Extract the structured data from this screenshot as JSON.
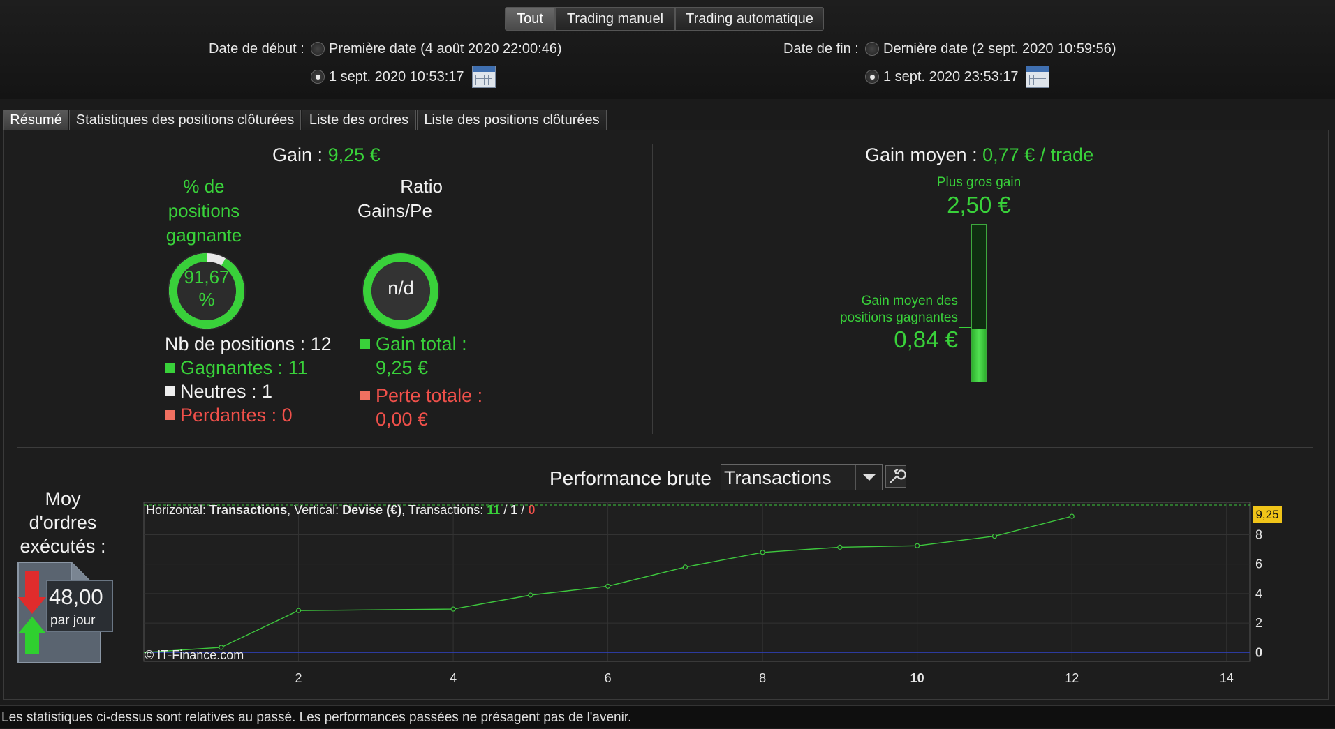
{
  "filter_tabs": [
    "Tout",
    "Trading manuel",
    "Trading automatique"
  ],
  "dates": {
    "start_label": "Date de début :",
    "start_first_option": "Première date (4 août 2020 22:00:46)",
    "start_custom": "1 sept. 2020 10:53:17",
    "end_label": "Date de fin :",
    "end_last_option": "Dernière date (2 sept. 2020 10:59:56)",
    "end_custom": "1 sept. 2020 23:53:17"
  },
  "view_tabs": [
    "Résumé",
    "Statistiques des positions clôturées",
    "Liste des ordres",
    "Liste des positions clôturées"
  ],
  "summary": {
    "gain_label": "Gain :",
    "gain_value": "9,25 €",
    "winning_pct_title_1": "% de",
    "winning_pct_title_2": "positions",
    "winning_pct_title_3": "gagnante",
    "winning_pct_value_1": "91,67",
    "winning_pct_value_2": "%",
    "winning_pct_fraction": 0.9167,
    "ratio_title_1": "Ratio",
    "ratio_title_2": "Gains/Pe",
    "ratio_value": "n/d",
    "nb_positions": "Nb de positions : 12",
    "gagnantes": "Gagnantes : 11",
    "neutres": "Neutres : 1",
    "perdantes": "Perdantes : 0",
    "gain_total_label": "Gain total :",
    "gain_total_value": "9,25 €",
    "perte_totale_label": "Perte totale :",
    "perte_totale_value": "0,00 €",
    "gain_moyen_label": "Gain moyen :",
    "gain_moyen_value": "0,77 € / trade",
    "plus_gros_gain_label": "Plus gros gain",
    "plus_gros_gain_value": "2,50 €",
    "gain_moyen_gagnantes_label_1": "Gain moyen des",
    "gain_moyen_gagnantes_label_2": "positions gagnantes",
    "gain_moyen_gagnantes_value": "0,84 €",
    "gain_bar_fraction": 0.336,
    "moy_ordres_1": "Moy",
    "moy_ordres_2": "d'ordres",
    "moy_ordres_3": "exécutés :",
    "ordres_par_jour_value": "48,00",
    "ordres_par_jour_unit": "par jour"
  },
  "performance": {
    "title": "Performance brute",
    "dropdown_value": "Transactions",
    "caption_prefix_h": "Horizontal: ",
    "caption_h": "Transactions",
    "caption_mid": ", Vertical: ",
    "caption_v": "Devise (€)",
    "caption_tx": ", Transactions: ",
    "tx_win": "11",
    "tx_sep1": " / ",
    "tx_neutral": "1",
    "tx_sep2": " / ",
    "tx_loss": "0",
    "copyright": "© IT-Finance.com",
    "current_value_label": "9,25"
  },
  "chart_data": {
    "type": "line",
    "x": [
      0,
      1,
      2,
      4,
      5,
      6,
      7,
      8,
      9,
      10,
      11,
      12
    ],
    "y": [
      0,
      0.35,
      2.85,
      2.95,
      3.9,
      4.5,
      5.8,
      6.8,
      7.15,
      7.25,
      7.9,
      9.25
    ],
    "xlim": [
      0,
      14.3
    ],
    "ylim": [
      -0.6,
      10.2
    ],
    "xticks": [
      "2",
      "4",
      "6",
      "8",
      "10",
      "12",
      "14"
    ],
    "yticks": [
      "0",
      "2",
      "4",
      "6",
      "8"
    ],
    "grid": true,
    "line_color": "#3ec83e"
  },
  "footer": "Les statistiques ci-dessus sont relatives au passé. Les performances passées ne présagent pas de l'avenir."
}
